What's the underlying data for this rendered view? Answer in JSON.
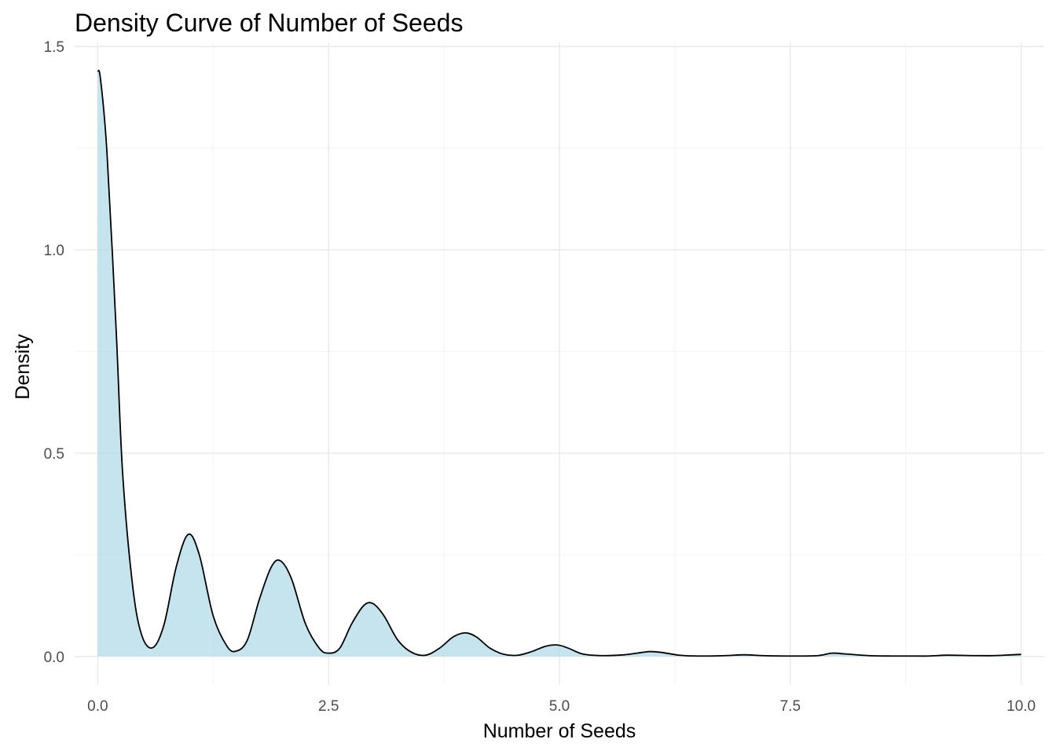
{
  "chart_data": {
    "type": "area",
    "title": "Density Curve of Number of Seeds",
    "xlabel": "Number of Seeds",
    "ylabel": "Density",
    "xlim": [
      -0.25,
      10.25
    ],
    "ylim": [
      -0.07,
      1.51
    ],
    "x_ticks": [
      0,
      2.5,
      5,
      7.5,
      10
    ],
    "x_tick_labels": [
      "0.0",
      "2.5",
      "5.0",
      "7.5",
      "10.0"
    ],
    "x_minor_ticks": [
      1.25,
      3.75,
      6.25,
      8.75
    ],
    "y_ticks": [
      0,
      0.5,
      1,
      1.5
    ],
    "y_tick_labels": [
      "0.0",
      "0.5",
      "1.0",
      "1.5"
    ],
    "y_minor_ticks": [
      0.25,
      0.75,
      1.25
    ],
    "grid": true,
    "legend": "none",
    "fill_color": "#add8e6",
    "fill_opacity": 0.7,
    "line_color": "#000000",
    "series": [
      {
        "x": [
          0.0,
          0.03,
          0.1,
          0.2,
          0.27,
          0.38,
          0.48,
          0.6,
          0.72,
          0.85,
          0.98,
          1.1,
          1.25,
          1.4,
          1.5,
          1.62,
          1.75,
          1.88,
          1.98,
          2.1,
          2.25,
          2.4,
          2.5,
          2.62,
          2.75,
          2.88,
          2.98,
          3.1,
          3.25,
          3.4,
          3.55,
          3.7,
          3.85,
          3.98,
          4.1,
          4.25,
          4.4,
          4.55,
          4.7,
          4.85,
          4.98,
          5.1,
          5.25,
          5.45,
          5.7,
          5.9,
          5.98,
          6.1,
          6.3,
          6.5,
          6.8,
          7.0,
          7.2,
          7.5,
          7.8,
          7.95,
          8.1,
          8.35,
          8.6,
          8.8,
          9.0,
          9.2,
          9.5,
          9.7,
          9.9,
          10.0
        ],
        "y": [
          1.44,
          1.42,
          1.24,
          0.8,
          0.45,
          0.17,
          0.05,
          0.022,
          0.08,
          0.22,
          0.3,
          0.25,
          0.1,
          0.025,
          0.013,
          0.04,
          0.14,
          0.22,
          0.235,
          0.19,
          0.08,
          0.02,
          0.008,
          0.02,
          0.08,
          0.125,
          0.13,
          0.1,
          0.04,
          0.01,
          0.003,
          0.02,
          0.048,
          0.058,
          0.048,
          0.02,
          0.005,
          0.003,
          0.012,
          0.025,
          0.028,
          0.02,
          0.006,
          0.002,
          0.004,
          0.01,
          0.012,
          0.01,
          0.003,
          0.001,
          0.002,
          0.004,
          0.002,
          0.001,
          0.002,
          0.008,
          0.006,
          0.002,
          0.001,
          0.001,
          0.001,
          0.003,
          0.002,
          0.002,
          0.004,
          0.005
        ]
      }
    ]
  }
}
